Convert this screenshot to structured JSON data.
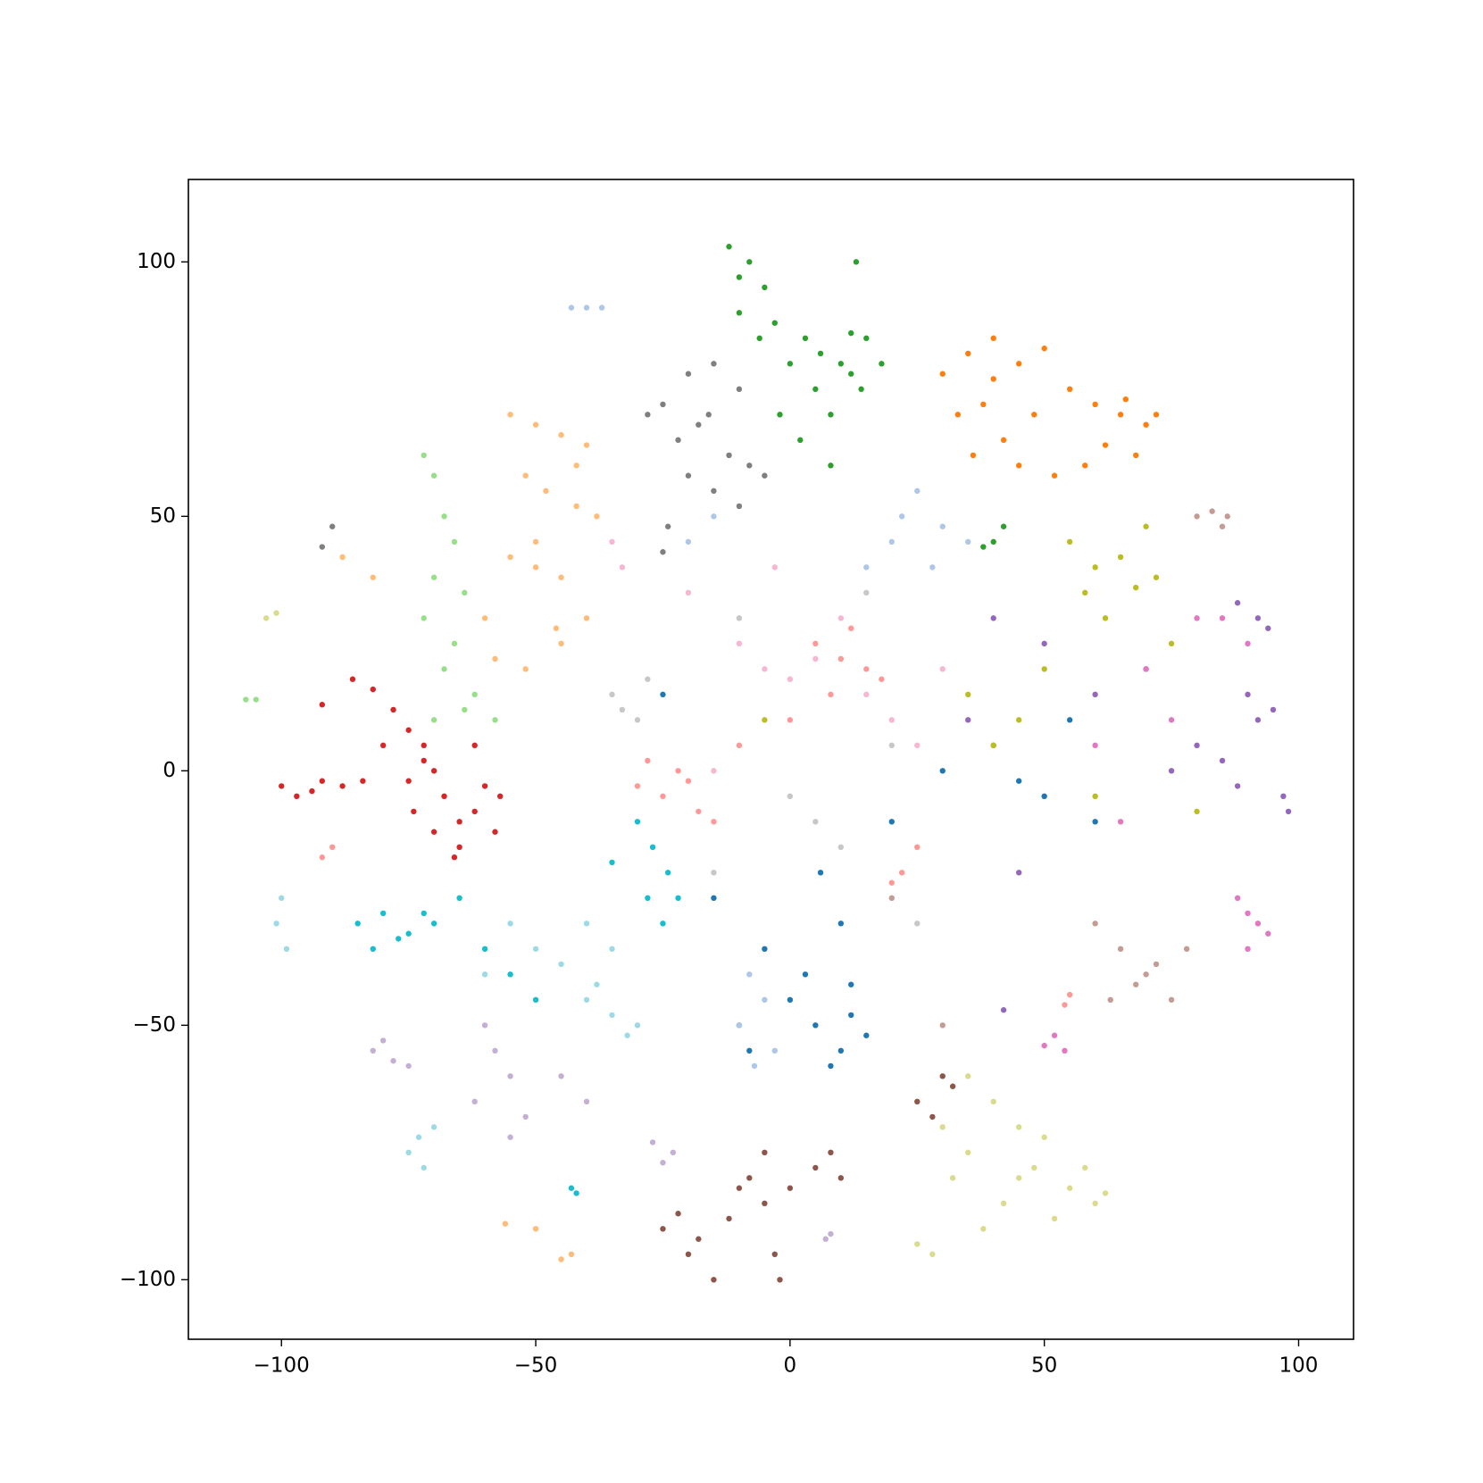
{
  "chart_data": {
    "type": "scatter",
    "xlim": [
      -118.3,
      110.8
    ],
    "ylim": [
      -111.7,
      116.2
    ],
    "xticks": [
      {
        "value": -100,
        "label": "−100"
      },
      {
        "value": -50,
        "label": "−50"
      },
      0,
      50,
      100
    ],
    "yticks": [
      {
        "value": -100,
        "label": "−100"
      },
      {
        "value": -50,
        "label": "−50"
      },
      0,
      50,
      100
    ],
    "series": [
      {
        "color": "#2ca02c",
        "x": [
          -12,
          -8,
          -5,
          -10,
          -6,
          -3,
          0,
          3,
          6,
          10,
          12,
          14,
          5,
          8,
          12,
          15,
          18,
          -2,
          2,
          8,
          40,
          42,
          38,
          -10,
          13
        ],
        "values": [
          103,
          100,
          95,
          90,
          85,
          88,
          80,
          85,
          82,
          80,
          86,
          75,
          75,
          70,
          78,
          85,
          80,
          70,
          65,
          60,
          45,
          48,
          44,
          97,
          100
        ]
      },
      {
        "color": "#ff7f0e",
        "x": [
          30,
          35,
          40,
          45,
          50,
          38,
          42,
          48,
          55,
          60,
          65,
          70,
          68,
          62,
          58,
          33,
          45,
          52,
          40,
          36,
          66,
          72
        ],
        "values": [
          78,
          82,
          85,
          80,
          83,
          72,
          65,
          70,
          75,
          72,
          70,
          68,
          62,
          64,
          60,
          70,
          60,
          58,
          77,
          62,
          73,
          70
        ]
      },
      {
        "color": "#7f7f7f",
        "x": [
          -25,
          -20,
          -15,
          -10,
          -22,
          -18,
          -12,
          -8,
          -20,
          -15,
          -5,
          -28,
          -24,
          -10,
          -16,
          -90,
          -92,
          -25
        ],
        "values": [
          72,
          78,
          80,
          75,
          65,
          68,
          62,
          60,
          58,
          55,
          58,
          70,
          48,
          52,
          70,
          48,
          44,
          43
        ]
      },
      {
        "color": "#ffbb78",
        "x": [
          -55,
          -50,
          -45,
          -40,
          -52,
          -48,
          -42,
          -38,
          -55,
          -50,
          -45,
          -60,
          -58,
          -52,
          -45,
          -40,
          -50,
          -46,
          -88,
          -82,
          -42,
          -50,
          -45,
          -56,
          -43
        ],
        "values": [
          70,
          68,
          66,
          64,
          58,
          55,
          52,
          50,
          42,
          40,
          38,
          30,
          22,
          20,
          25,
          30,
          45,
          28,
          42,
          38,
          60,
          -90,
          -96,
          -89,
          -95
        ]
      },
      {
        "color": "#98df8a",
        "x": [
          -72,
          -70,
          -68,
          -66,
          -70,
          -64,
          -72,
          -66,
          -68,
          -62,
          -70,
          -64,
          -58,
          -107,
          -105
        ],
        "values": [
          62,
          58,
          50,
          45,
          38,
          35,
          30,
          25,
          20,
          15,
          10,
          12,
          10,
          14,
          14
        ]
      },
      {
        "color": "#d62728",
        "x": [
          -92,
          -86,
          -82,
          -78,
          -75,
          -72,
          -70,
          -68,
          -65,
          -62,
          -60,
          -58,
          -80,
          -75,
          -70,
          -65,
          -100,
          -97,
          -94,
          -92,
          -88,
          -84,
          -74,
          -66,
          -57,
          -72,
          -62
        ],
        "values": [
          13,
          18,
          16,
          12,
          8,
          5,
          0,
          -5,
          -10,
          -8,
          -3,
          -12,
          5,
          -2,
          -12,
          -15,
          -3,
          -5,
          -4,
          -2,
          -3,
          -2,
          -8,
          -17,
          -5,
          2,
          5
        ]
      },
      {
        "color": "#ff9896",
        "x": [
          -30,
          -25,
          -22,
          -18,
          -15,
          -28,
          -20,
          5,
          10,
          15,
          8,
          12,
          18,
          22,
          25,
          20,
          -92,
          -90,
          55,
          54,
          -10,
          0
        ],
        "values": [
          -3,
          -5,
          0,
          -8,
          -10,
          2,
          -2,
          25,
          22,
          20,
          15,
          28,
          18,
          -20,
          -15,
          -22,
          -17,
          -15,
          -44,
          -46,
          5,
          10
        ]
      },
      {
        "color": "#17becf",
        "x": [
          -85,
          -80,
          -75,
          -70,
          -82,
          -77,
          -72,
          -30,
          -27,
          -24,
          -22,
          -28,
          -25,
          -42,
          -43,
          -60,
          -55,
          -65,
          -35,
          -50
        ],
        "values": [
          -30,
          -28,
          -32,
          -30,
          -35,
          -33,
          -28,
          -10,
          -15,
          -20,
          -25,
          -25,
          -30,
          -83,
          -82,
          -35,
          -40,
          -25,
          -18,
          -45
        ]
      },
      {
        "color": "#9edae5",
        "x": [
          -100,
          -101,
          -99,
          -40,
          -35,
          -32,
          -30,
          -38,
          -50,
          -45,
          -55,
          -73,
          -75,
          -70,
          -72,
          -60,
          -40,
          -35
        ],
        "values": [
          -25,
          -30,
          -35,
          -45,
          -48,
          -52,
          -50,
          -42,
          -35,
          -38,
          -30,
          -72,
          -75,
          -70,
          -78,
          -40,
          -30,
          -35
        ]
      },
      {
        "color": "#c5b0d5",
        "x": [
          -82,
          -78,
          -75,
          -80,
          -60,
          -58,
          -55,
          -52,
          -55,
          -62,
          -27,
          -25,
          -23,
          7,
          8,
          -45,
          -40
        ],
        "values": [
          -55,
          -57,
          -58,
          -53,
          -50,
          -55,
          -60,
          -68,
          -72,
          -65,
          -73,
          -77,
          -75,
          -92,
          -91,
          -60,
          -65
        ]
      },
      {
        "color": "#1f77b4",
        "x": [
          0,
          5,
          10,
          12,
          15,
          8,
          3,
          12,
          -10,
          -8,
          -5,
          20,
          30,
          40,
          50,
          55,
          60,
          -25,
          -15,
          45,
          10,
          6
        ],
        "values": [
          -45,
          -50,
          -55,
          -48,
          -52,
          -58,
          -40,
          -42,
          -50,
          -55,
          -35,
          -10,
          0,
          5,
          -5,
          10,
          -10,
          15,
          -25,
          -2,
          -30,
          -20
        ]
      },
      {
        "color": "#aec7e8",
        "x": [
          -43,
          -40,
          -37,
          -8,
          -5,
          -10,
          -3,
          -7,
          25,
          22,
          20,
          28,
          30,
          35,
          15,
          -20,
          -15
        ],
        "values": [
          91,
          91,
          91,
          -40,
          -45,
          -50,
          -55,
          -58,
          55,
          50,
          45,
          40,
          48,
          45,
          40,
          45,
          50
        ]
      },
      {
        "color": "#8c564b",
        "x": [
          -25,
          -20,
          -15,
          -12,
          -8,
          -5,
          -18,
          -22,
          -10,
          -5,
          0,
          5,
          8,
          10,
          -3,
          -2,
          30,
          25,
          28,
          32
        ],
        "values": [
          -90,
          -95,
          -100,
          -88,
          -80,
          -75,
          -92,
          -87,
          -82,
          -85,
          -82,
          -78,
          -75,
          -80,
          -95,
          -100,
          -60,
          -65,
          -68,
          -62
        ]
      },
      {
        "color": "#dbdb8d",
        "x": [
          30,
          35,
          40,
          45,
          50,
          55,
          60,
          38,
          42,
          48,
          52,
          25,
          28,
          32,
          58,
          62,
          45,
          -103,
          -101,
          35
        ],
        "values": [
          -70,
          -75,
          -65,
          -80,
          -72,
          -82,
          -85,
          -90,
          -85,
          -78,
          -88,
          -93,
          -95,
          -80,
          -78,
          -83,
          -70,
          30,
          31,
          -60
        ]
      },
      {
        "color": "#bcbd22",
        "x": [
          55,
          60,
          65,
          70,
          72,
          58,
          62,
          68,
          75,
          50,
          45,
          40,
          35,
          60,
          80,
          -5
        ],
        "values": [
          45,
          40,
          42,
          48,
          38,
          35,
          30,
          36,
          25,
          20,
          10,
          5,
          15,
          -5,
          -8,
          10
        ]
      },
      {
        "color": "#9467bd",
        "x": [
          88,
          92,
          94,
          90,
          95,
          92,
          97,
          98,
          88,
          85,
          50,
          60,
          70,
          40,
          35,
          45,
          75,
          80,
          42
        ],
        "values": [
          33,
          30,
          28,
          15,
          12,
          10,
          -5,
          -8,
          -3,
          2,
          25,
          15,
          20,
          30,
          10,
          -20,
          0,
          5,
          -47
        ]
      },
      {
        "color": "#e377c2",
        "x": [
          88,
          90,
          92,
          94,
          90,
          52,
          54,
          50,
          70,
          75,
          65,
          80,
          85,
          90,
          60
        ],
        "values": [
          -25,
          -28,
          -30,
          -32,
          -35,
          -52,
          -55,
          -54,
          20,
          10,
          -10,
          30,
          30,
          25,
          5
        ]
      },
      {
        "color": "#f7b6d2",
        "x": [
          -5,
          0,
          5,
          -10,
          15,
          20,
          -3,
          -35,
          -33,
          10,
          25,
          -20,
          -15,
          30
        ],
        "values": [
          20,
          18,
          22,
          25,
          15,
          10,
          40,
          45,
          40,
          30,
          5,
          35,
          0,
          20
        ]
      },
      {
        "color": "#c7c7c7",
        "x": [
          -35,
          -33,
          -30,
          -28,
          -10,
          0,
          5,
          10,
          20,
          -15,
          15,
          25
        ],
        "values": [
          15,
          12,
          10,
          18,
          30,
          -5,
          -10,
          -15,
          5,
          -20,
          35,
          -30
        ]
      },
      {
        "color": "#c49c94",
        "x": [
          80,
          83,
          86,
          85,
          60,
          65,
          70,
          75,
          72,
          68,
          78,
          63,
          20,
          30
        ],
        "values": [
          50,
          51,
          50,
          48,
          -30,
          -35,
          -40,
          -45,
          -38,
          -42,
          -35,
          -45,
          -25,
          -50
        ]
      }
    ]
  }
}
